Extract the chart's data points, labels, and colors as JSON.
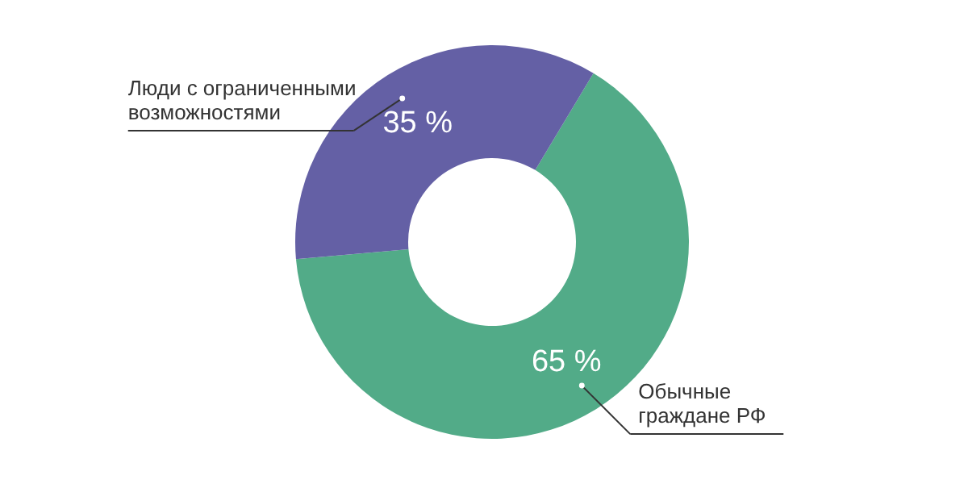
{
  "chart_data": {
    "type": "donut",
    "categories": [
      "Обычные граждане РФ",
      "Люди с ограниченными возможностями"
    ],
    "values": [
      65,
      35
    ],
    "colors": [
      "#52ab88",
      "#6460a5"
    ],
    "value_labels": [
      "65 %",
      "35 %"
    ]
  }
}
